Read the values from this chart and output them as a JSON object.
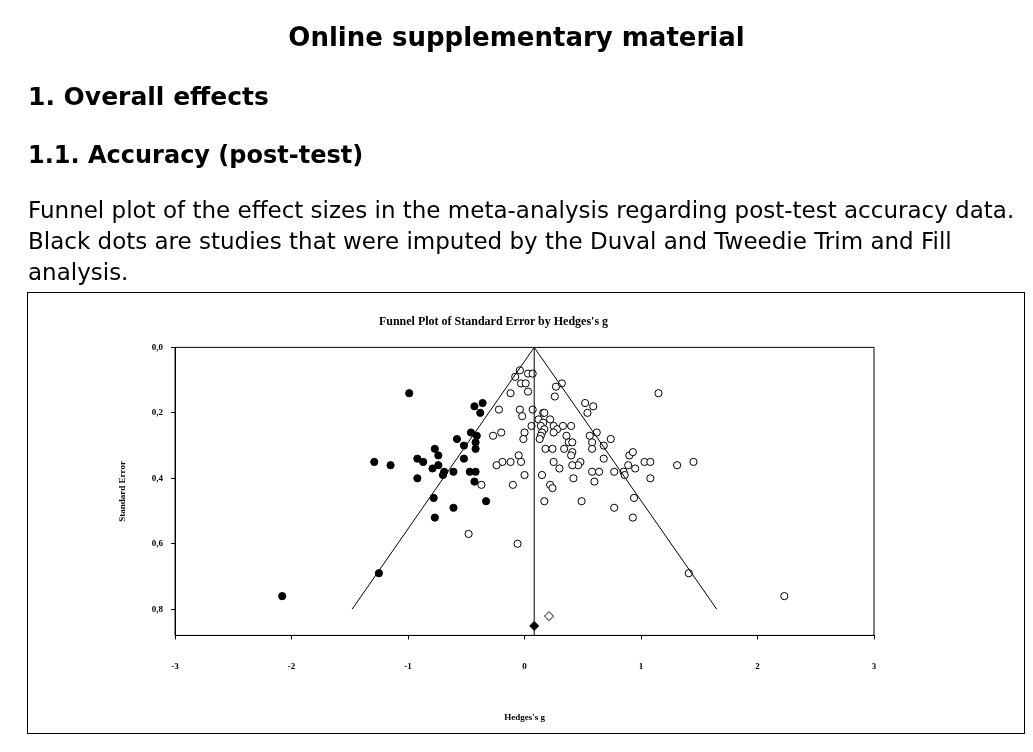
{
  "chart_data": {
    "type": "scatter",
    "title": "Funnel Plot of Standard Error by Hedges's g",
    "xlabel": "Hedges's g",
    "ylabel": "Standard Error",
    "annotations": [
      "Online supplementary material",
      "1. Overall effects",
      "1.1. Accuracy (post-test)",
      "Funnel plot of the effect sizes in the meta-analysis regarding post-test accuracy data. Black dots are studies that were imputed by the Duval and Tweedie Trim and Fill analysis."
    ],
    "xlim": [
      -3,
      3
    ],
    "xticks": [
      -3,
      -2,
      -1,
      0,
      1,
      2,
      3
    ],
    "ylim": [
      0.88,
      0
    ],
    "yticks": [
      {
        "value": 0,
        "label": "0,0"
      },
      {
        "value": 0.2,
        "label": "0,2"
      },
      {
        "value": 0.4,
        "label": "0,4"
      },
      {
        "value": 0.6,
        "label": "0,6"
      },
      {
        "value": 0.8,
        "label": "0,8"
      }
    ],
    "grid": false,
    "legend": false,
    "marker": "circle",
    "ref_lines": [
      {
        "axis": "x",
        "value": 0.083,
        "color": "#000000"
      }
    ],
    "series": [
      {
        "type": "line",
        "color": "#000000",
        "marker": "none",
        "x": [
          -1.48,
          0.083,
          1.65
        ],
        "values": [
          0.8,
          0,
          0.8
        ]
      },
      {
        "color": "#000000",
        "x": [
          -0.99,
          -0.36,
          -0.43,
          -0.38,
          -0.46,
          -0.41,
          -0.42,
          -0.58,
          -0.52,
          -0.42,
          -0.77,
          -0.74,
          -0.52,
          -1.29,
          -1.15,
          -0.92,
          -0.87,
          -0.79,
          -0.74,
          -0.69,
          -0.61,
          -0.7,
          -0.47,
          -0.42,
          -0.92,
          -0.43,
          -0.78,
          -0.33,
          -0.61,
          -0.77,
          -1.25,
          -2.08
        ],
        "values": [
          0.14,
          0.17,
          0.18,
          0.2,
          0.26,
          0.27,
          0.29,
          0.28,
          0.3,
          0.31,
          0.31,
          0.33,
          0.34,
          0.35,
          0.36,
          0.34,
          0.35,
          0.37,
          0.36,
          0.38,
          0.38,
          0.39,
          0.38,
          0.38,
          0.4,
          0.41,
          0.46,
          0.47,
          0.49,
          0.52,
          0.69,
          0.76
        ]
      },
      {
        "color": "#ffffff",
        "x": [
          -0.04,
          -0.08,
          0.03,
          0.07,
          -0.03,
          0.01,
          0.03,
          -0.12,
          0.27,
          0.32,
          0.26,
          1.15,
          0.52,
          0.59,
          0.54,
          -0.22,
          -0.04,
          0.07,
          -0.02,
          0.16,
          0.17,
          0.12,
          0.22,
          0.16,
          -0.2,
          -0.27,
          0.0,
          -0.01,
          0.06,
          0.14,
          0.17,
          0.25,
          0.28,
          0.33,
          0.4,
          0.25,
          0.15,
          0.14,
          0.13,
          0.36,
          0.56,
          0.62,
          0.58,
          0.38,
          0.41,
          0.18,
          0.24,
          0.34,
          0.41,
          0.4,
          0.58,
          0.68,
          0.74,
          -0.05,
          0.9,
          0.93,
          -0.19,
          -0.24,
          -0.12,
          -0.03,
          0.25,
          0.48,
          0.46,
          0.41,
          0.3,
          0.68,
          0.89,
          0.95,
          1.03,
          1.08,
          1.31,
          1.45,
          0.15,
          0.58,
          0.64,
          0.77,
          0.85,
          0.86,
          1.08,
          0.0,
          0.42,
          0.6,
          -0.1,
          0.22,
          0.24,
          0.94,
          0.17,
          0.49,
          0.77,
          0.93,
          -0.37,
          -0.48,
          -0.06,
          1.41,
          2.23
        ],
        "values": [
          0.07,
          0.09,
          0.08,
          0.08,
          0.11,
          0.11,
          0.135,
          0.14,
          0.12,
          0.11,
          0.15,
          0.14,
          0.17,
          0.18,
          0.2,
          0.19,
          0.19,
          0.19,
          0.21,
          0.2,
          0.2,
          0.22,
          0.22,
          0.23,
          0.26,
          0.27,
          0.26,
          0.28,
          0.24,
          0.24,
          0.25,
          0.24,
          0.25,
          0.24,
          0.24,
          0.26,
          0.26,
          0.27,
          0.28,
          0.27,
          0.27,
          0.26,
          0.29,
          0.29,
          0.29,
          0.31,
          0.31,
          0.31,
          0.32,
          0.33,
          0.31,
          0.3,
          0.28,
          0.33,
          0.33,
          0.32,
          0.35,
          0.36,
          0.35,
          0.35,
          0.35,
          0.35,
          0.36,
          0.36,
          0.37,
          0.34,
          0.36,
          0.37,
          0.35,
          0.35,
          0.36,
          0.35,
          0.39,
          0.38,
          0.38,
          0.38,
          0.38,
          0.39,
          0.4,
          0.39,
          0.4,
          0.41,
          0.42,
          0.42,
          0.43,
          0.46,
          0.47,
          0.47,
          0.49,
          0.52,
          0.42,
          0.57,
          0.6,
          0.69,
          0.76
        ]
      },
      {
        "color": "#000000",
        "marker": "diamond",
        "x": [
          0.083
        ],
        "values": [
          0.851
        ]
      },
      {
        "color": "#ffffff",
        "marker": "diamond",
        "x": [
          0.21
        ],
        "values": [
          0.821
        ]
      }
    ]
  }
}
